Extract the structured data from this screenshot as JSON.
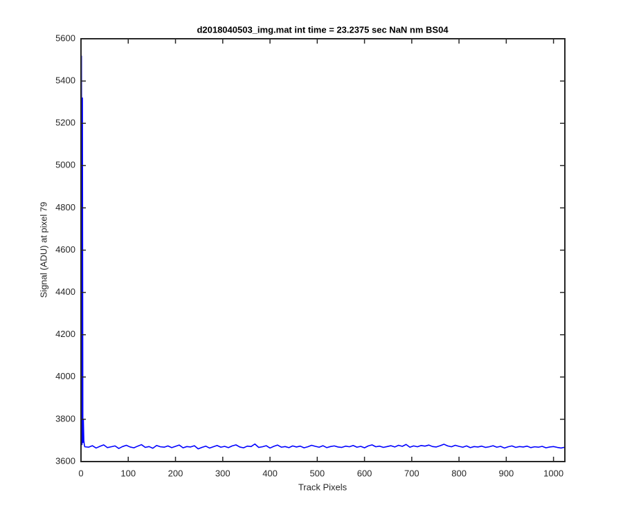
{
  "chart_data": {
    "type": "line",
    "title": "d2018040503_img.mat int time = 23.2375 sec  NaN nm BS04",
    "x_label": "Track Pixels",
    "y_label": "Signal (ADU) at pixel 79",
    "x": [
      1,
      2,
      3,
      4,
      5,
      6,
      7,
      8,
      16,
      24,
      32,
      40,
      48,
      56,
      64,
      72,
      80,
      88,
      96,
      104,
      112,
      120,
      128,
      136,
      144,
      152,
      160,
      168,
      176,
      184,
      192,
      200,
      208,
      216,
      224,
      232,
      240,
      248,
      256,
      264,
      272,
      280,
      288,
      296,
      304,
      312,
      320,
      328,
      336,
      344,
      352,
      360,
      368,
      376,
      384,
      392,
      400,
      408,
      416,
      424,
      432,
      440,
      448,
      456,
      464,
      472,
      480,
      488,
      496,
      504,
      512,
      520,
      528,
      536,
      544,
      552,
      560,
      568,
      576,
      584,
      592,
      600,
      608,
      616,
      624,
      632,
      640,
      648,
      656,
      664,
      672,
      680,
      688,
      696,
      704,
      712,
      720,
      728,
      736,
      744,
      752,
      760,
      768,
      776,
      784,
      792,
      800,
      808,
      816,
      824,
      832,
      840,
      848,
      856,
      864,
      872,
      880,
      888,
      896,
      904,
      912,
      920,
      928,
      936,
      944,
      952,
      960,
      968,
      976,
      984,
      992,
      1000,
      1008,
      1016,
      1024
    ],
    "series": [
      {
        "color": "#0000ff",
        "values": [
          5520,
          3680,
          5320,
          3690,
          3800,
          3700,
          3680,
          3670,
          3668,
          3675,
          3664,
          3672,
          3679,
          3666,
          3670,
          3674,
          3662,
          3671,
          3677,
          3669,
          3665,
          3673,
          3680,
          3667,
          3671,
          3663,
          3676,
          3670,
          3668,
          3674,
          3666,
          3672,
          3678,
          3665,
          3671,
          3669,
          3675,
          3660,
          3667,
          3673,
          3664,
          3670,
          3676,
          3668,
          3672,
          3666,
          3674,
          3679,
          3669,
          3665,
          3673,
          3671,
          3683,
          3667,
          3670,
          3675,
          3664,
          3672,
          3678,
          3668,
          3671,
          3666,
          3674,
          3669,
          3673,
          3665,
          3670,
          3677,
          3672,
          3668,
          3675,
          3666,
          3671,
          3674,
          3669,
          3667,
          3673,
          3670,
          3676,
          3668,
          3672,
          3665,
          3674,
          3679,
          3670,
          3673,
          3667,
          3671,
          3675,
          3669,
          3677,
          3672,
          3681,
          3668,
          3674,
          3670,
          3676,
          3673,
          3678,
          3671,
          3669,
          3675,
          3682,
          3674,
          3670,
          3677,
          3672,
          3668,
          3674,
          3666,
          3671,
          3669,
          3673,
          3667,
          3670,
          3675,
          3668,
          3672,
          3664,
          3670,
          3674,
          3667,
          3671,
          3669,
          3673,
          3666,
          3670,
          3668,
          3672,
          3665,
          3669,
          3671,
          3667,
          3664,
          3668
        ]
      }
    ],
    "xlim": [
      0,
      1024
    ],
    "ylim": [
      3600,
      5600
    ],
    "xticks": [
      0,
      100,
      200,
      300,
      400,
      500,
      600,
      700,
      800,
      900,
      1000
    ],
    "yticks": [
      3600,
      3800,
      4000,
      4200,
      4400,
      4600,
      4800,
      5000,
      5200,
      5400,
      5600
    ],
    "grid": false
  }
}
